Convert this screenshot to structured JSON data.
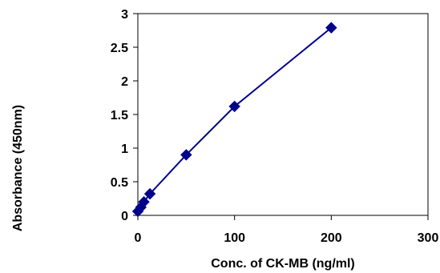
{
  "chart_data": {
    "type": "line",
    "title": "",
    "xlabel": "Conc. of CK-MB (ng/ml)",
    "ylabel": "Absorbance (450nm)",
    "xlim": [
      0,
      300
    ],
    "ylim": [
      0,
      3
    ],
    "x_ticks": [
      0,
      100,
      200,
      300
    ],
    "y_ticks": [
      0,
      0.5,
      1,
      1.5,
      2,
      2.5,
      3
    ],
    "x_tick_labels": [
      "0",
      "100",
      "200",
      "300"
    ],
    "y_tick_labels": [
      "0",
      "0.5",
      "1",
      "1.5",
      "2",
      "2.5",
      "3"
    ],
    "grid": false,
    "legend": "none",
    "series": [
      {
        "x": [
          0,
          3.13,
          6.25,
          12.5,
          50,
          100,
          200
        ],
        "y": [
          0.06,
          0.12,
          0.2,
          0.32,
          0.9,
          1.62,
          2.79
        ],
        "marker": "diamond",
        "color": "#00008B"
      }
    ]
  }
}
